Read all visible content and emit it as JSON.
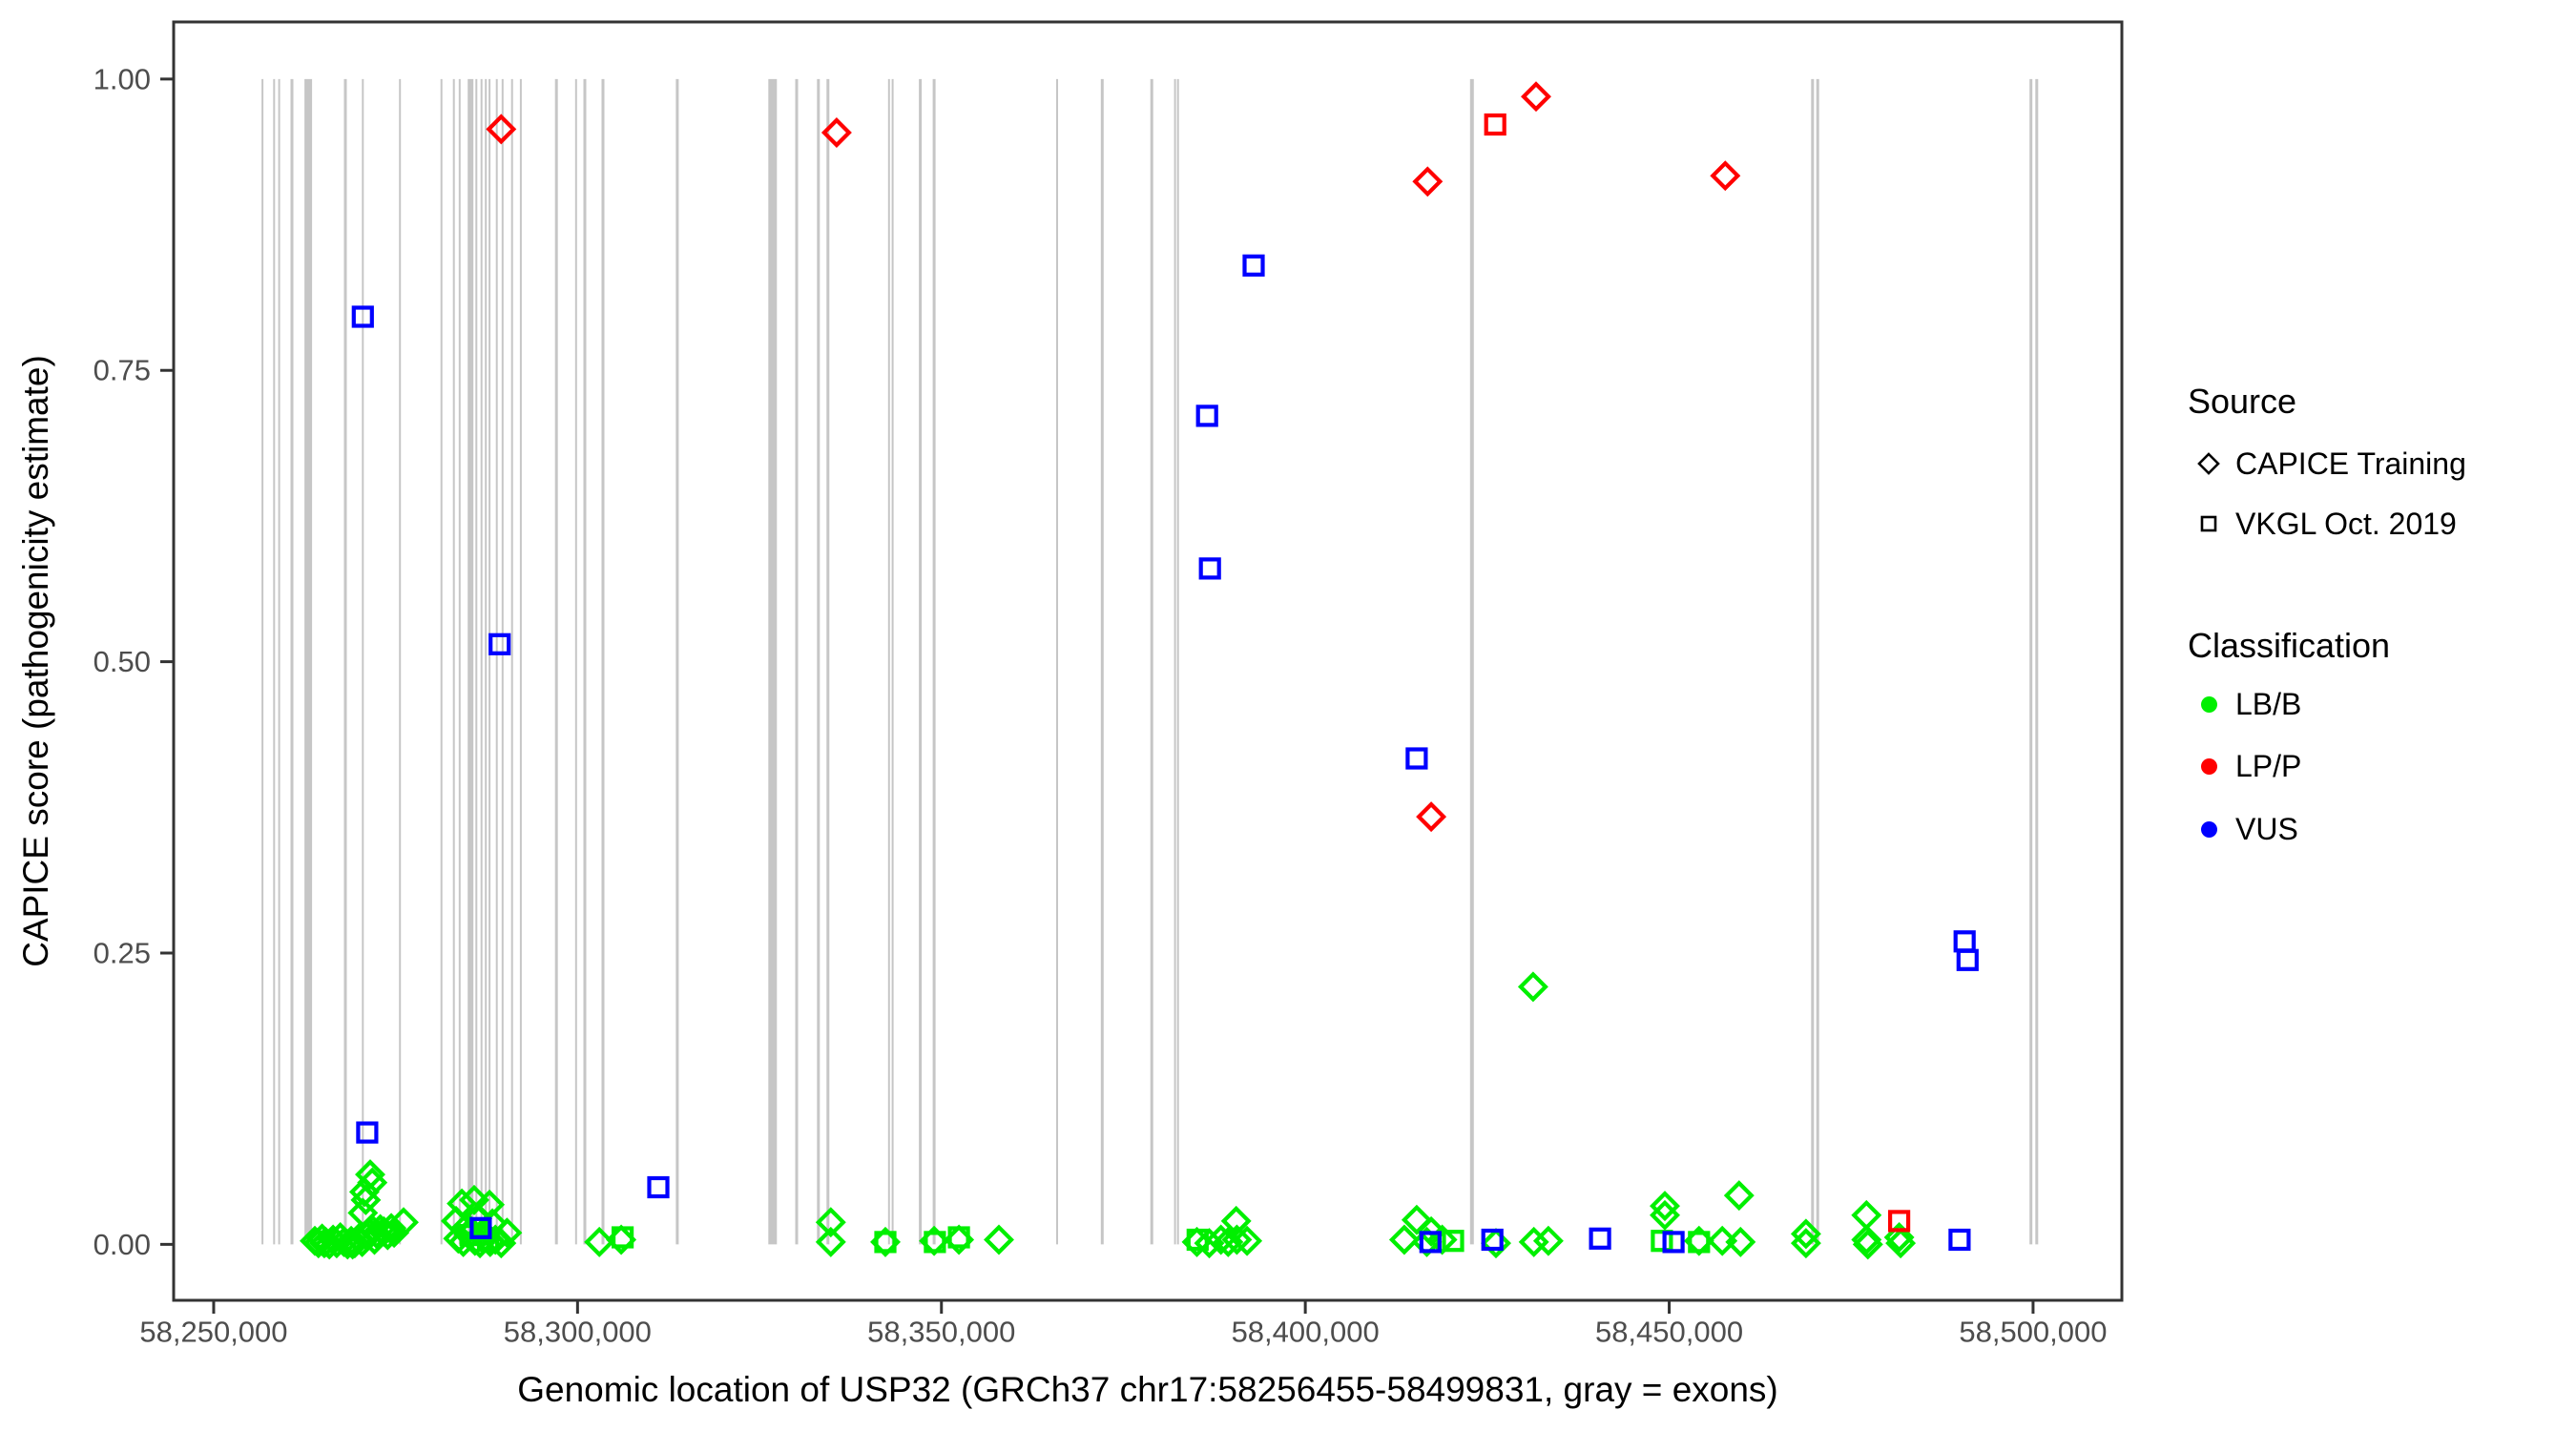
{
  "figure": {
    "xlabel": "Genomic location of USP32 (GRCh37 chr17:58256455-58499831, gray = exons)",
    "ylabel": "CAPICE score (pathogenicity estimate)"
  },
  "legend": {
    "source": {
      "title": "Source",
      "items": [
        {
          "label": "CAPICE Training",
          "marker": "diamond"
        },
        {
          "label": "VKGL Oct. 2019",
          "marker": "square"
        }
      ]
    },
    "classification": {
      "title": "Classification",
      "items": [
        {
          "label": "LB/B",
          "color_key": "LB/B"
        },
        {
          "label": "LP/P",
          "color_key": "LP/P"
        },
        {
          "label": "VUS",
          "color_key": "VUS"
        }
      ]
    }
  },
  "chart_data": {
    "type": "scatter",
    "title": "",
    "xlabel": "Genomic location of USP32 (GRCh37 chr17:58256455-58499831, gray = exons)",
    "ylabel": "CAPICE score (pathogenicity estimate)",
    "x_domain": [
      58244500,
      58512200
    ],
    "y_domain": [
      -0.048,
      1.049
    ],
    "grid": false,
    "legend_position": "right",
    "x_ticks": [
      {
        "value": 58250000,
        "label": "58,250,000"
      },
      {
        "value": 58300000,
        "label": "58,300,000"
      },
      {
        "value": 58350000,
        "label": "58,350,000"
      },
      {
        "value": 58400000,
        "label": "58,400,000"
      },
      {
        "value": 58450000,
        "label": "58,450,000"
      },
      {
        "value": 58500000,
        "label": "58,500,000"
      }
    ],
    "y_ticks": [
      {
        "value": 0.0,
        "label": "0.00"
      },
      {
        "value": 0.25,
        "label": "0.25"
      },
      {
        "value": 0.5,
        "label": "0.50"
      },
      {
        "value": 0.75,
        "label": "0.75"
      },
      {
        "value": 1.0,
        "label": "1.00"
      }
    ],
    "colors": {
      "LB/B": "#00EF00",
      "LP/P": "#FF0000",
      "VUS": "#0000FF",
      "exon": "#C6C6C6",
      "axis": "#333333",
      "tick_text": "#4D4D4D"
    },
    "exon_note": "gray vertical lines = exons, drawn spanning score 0 to 1",
    "exons": [
      [
        58256700,
        2
      ],
      [
        58258300,
        2
      ],
      [
        58259000,
        2
      ],
      [
        58260750,
        3
      ],
      [
        58263000,
        8
      ],
      [
        58268100,
        3
      ],
      [
        58270500,
        2
      ],
      [
        58275600,
        2
      ],
      [
        58281300,
        2
      ],
      [
        58283000,
        2
      ],
      [
        58283800,
        2
      ],
      [
        58285300,
        6
      ],
      [
        58286100,
        2
      ],
      [
        58286800,
        2
      ],
      [
        58287400,
        2
      ],
      [
        58287900,
        2
      ],
      [
        58288900,
        2
      ],
      [
        58289700,
        2
      ],
      [
        58291000,
        2
      ],
      [
        58292200,
        2
      ],
      [
        58297100,
        3
      ],
      [
        58299800,
        2
      ],
      [
        58301000,
        3
      ],
      [
        58303500,
        3
      ],
      [
        58313700,
        3
      ],
      [
        58326800,
        9
      ],
      [
        58330100,
        3
      ],
      [
        58333100,
        3
      ],
      [
        58334400,
        3
      ],
      [
        58342800,
        2
      ],
      [
        58343300,
        2
      ],
      [
        58347100,
        3
      ],
      [
        58349000,
        3
      ],
      [
        58365900,
        2
      ],
      [
        58372100,
        3
      ],
      [
        58378900,
        3
      ],
      [
        58382100,
        2
      ],
      [
        58382500,
        2
      ],
      [
        58422900,
        4
      ],
      [
        58469700,
        3
      ],
      [
        58470400,
        3
      ],
      [
        58499700,
        3
      ],
      [
        58500500,
        3
      ]
    ],
    "points_schema": [
      "genomic_position",
      "capice_score",
      "source",
      "classification"
    ],
    "points": [
      [
        58289500,
        0.957,
        "CAPICE Training",
        "LP/P"
      ],
      [
        58335600,
        0.954,
        "CAPICE Training",
        "LP/P"
      ],
      [
        58416800,
        0.912,
        "CAPICE Training",
        "LP/P"
      ],
      [
        58426100,
        0.961,
        "VKGL Oct. 2019",
        "LP/P"
      ],
      [
        58431700,
        0.985,
        "CAPICE Training",
        "LP/P"
      ],
      [
        58457700,
        0.917,
        "CAPICE Training",
        "LP/P"
      ],
      [
        58417300,
        0.367,
        "CAPICE Training",
        "LP/P"
      ],
      [
        58481600,
        0.02,
        "VKGL Oct. 2019",
        "LP/P"
      ],
      [
        58270500,
        0.796,
        "VKGL Oct. 2019",
        "VUS"
      ],
      [
        58271100,
        0.096,
        "VKGL Oct. 2019",
        "VUS"
      ],
      [
        58289300,
        0.515,
        "VKGL Oct. 2019",
        "VUS"
      ],
      [
        58386500,
        0.711,
        "VKGL Oct. 2019",
        "VUS"
      ],
      [
        58386900,
        0.58,
        "VKGL Oct. 2019",
        "VUS"
      ],
      [
        58392900,
        0.84,
        "VKGL Oct. 2019",
        "VUS"
      ],
      [
        58415300,
        0.417,
        "VKGL Oct. 2019",
        "VUS"
      ],
      [
        58490600,
        0.26,
        "VKGL Oct. 2019",
        "VUS"
      ],
      [
        58491000,
        0.244,
        "VKGL Oct. 2019",
        "VUS"
      ],
      [
        58286700,
        0.014,
        "VKGL Oct. 2019",
        "VUS"
      ],
      [
        58311100,
        0.049,
        "VKGL Oct. 2019",
        "VUS"
      ],
      [
        58417200,
        0.002,
        "VKGL Oct. 2019",
        "VUS"
      ],
      [
        58425700,
        0.004,
        "VKGL Oct. 2019",
        "VUS"
      ],
      [
        58440500,
        0.005,
        "VKGL Oct. 2019",
        "VUS"
      ],
      [
        58450600,
        0.002,
        "VKGL Oct. 2019",
        "VUS"
      ],
      [
        58489900,
        0.004,
        "VKGL Oct. 2019",
        "VUS"
      ],
      [
        58271500,
        0.06,
        "CAPICE Training",
        "LB/B"
      ],
      [
        58271800,
        0.053,
        "CAPICE Training",
        "LB/B"
      ],
      [
        58270700,
        0.045,
        "CAPICE Training",
        "LB/B"
      ],
      [
        58270900,
        0.038,
        "CAPICE Training",
        "LB/B"
      ],
      [
        58270500,
        0.027,
        "CAPICE Training",
        "LB/B"
      ],
      [
        58276100,
        0.019,
        "CAPICE Training",
        "LB/B"
      ],
      [
        58263900,
        0.003,
        "CAPICE Training",
        "LB/B"
      ],
      [
        58264400,
        0.001,
        "CAPICE Training",
        "LB/B"
      ],
      [
        58264900,
        0.005,
        "CAPICE Training",
        "LB/B"
      ],
      [
        58265400,
        0.002,
        "CAPICE Training",
        "LB/B"
      ],
      [
        58265900,
        0.0,
        "CAPICE Training",
        "LB/B"
      ],
      [
        58266400,
        0.004,
        "CAPICE Training",
        "LB/B"
      ],
      [
        58266900,
        0.001,
        "CAPICE Training",
        "LB/B"
      ],
      [
        58267400,
        0.006,
        "CAPICE Training",
        "LB/B"
      ],
      [
        58267900,
        0.002,
        "CAPICE Training",
        "LB/B"
      ],
      [
        58268400,
        0.0,
        "CAPICE Training",
        "LB/B"
      ],
      [
        58268900,
        0.003,
        "CAPICE Training",
        "LB/B"
      ],
      [
        58269400,
        0.001,
        "CAPICE Training",
        "LB/B"
      ],
      [
        58269900,
        0.005,
        "CAPICE Training",
        "LB/B"
      ],
      [
        58270400,
        0.002,
        "CAPICE Training",
        "LB/B"
      ],
      [
        58270900,
        0.008,
        "CAPICE Training",
        "LB/B"
      ],
      [
        58271400,
        0.01,
        "CAPICE Training",
        "LB/B"
      ],
      [
        58271900,
        0.012,
        "CAPICE Training",
        "LB/B"
      ],
      [
        58272400,
        0.009,
        "CAPICE Training",
        "LB/B"
      ],
      [
        58272900,
        0.013,
        "CAPICE Training",
        "LB/B"
      ],
      [
        58273400,
        0.011,
        "CAPICE Training",
        "LB/B"
      ],
      [
        58273900,
        0.008,
        "CAPICE Training",
        "LB/B"
      ],
      [
        58274400,
        0.014,
        "CAPICE Training",
        "LB/B"
      ],
      [
        58274800,
        0.01,
        "CAPICE Training",
        "LB/B"
      ],
      [
        58265200,
        0.001,
        "CAPICE Training",
        "LB/B"
      ],
      [
        58269100,
        0.0,
        "CAPICE Training",
        "LB/B"
      ],
      [
        58272100,
        0.004,
        "CAPICE Training",
        "LB/B"
      ],
      [
        58284100,
        0.035,
        "CAPICE Training",
        "LB/B"
      ],
      [
        58285800,
        0.038,
        "CAPICE Training",
        "LB/B"
      ],
      [
        58287900,
        0.034,
        "CAPICE Training",
        "LB/B"
      ],
      [
        58283300,
        0.02,
        "CAPICE Training",
        "LB/B"
      ],
      [
        58284800,
        0.015,
        "CAPICE Training",
        "LB/B"
      ],
      [
        58286200,
        0.022,
        "CAPICE Training",
        "LB/B"
      ],
      [
        58287000,
        0.01,
        "CAPICE Training",
        "LB/B"
      ],
      [
        58288300,
        0.018,
        "CAPICE Training",
        "LB/B"
      ],
      [
        58283600,
        0.005,
        "CAPICE Training",
        "LB/B"
      ],
      [
        58284300,
        0.002,
        "CAPICE Training",
        "LB/B"
      ],
      [
        58285100,
        0.008,
        "CAPICE Training",
        "LB/B"
      ],
      [
        58285900,
        0.003,
        "CAPICE Training",
        "LB/B"
      ],
      [
        58286600,
        0.001,
        "CAPICE Training",
        "LB/B"
      ],
      [
        58287300,
        0.006,
        "CAPICE Training",
        "LB/B"
      ],
      [
        58288000,
        0.002,
        "CAPICE Training",
        "LB/B"
      ],
      [
        58288700,
        0.004,
        "CAPICE Training",
        "LB/B"
      ],
      [
        58289500,
        0.001,
        "CAPICE Training",
        "LB/B"
      ],
      [
        58290300,
        0.01,
        "CAPICE Training",
        "LB/B"
      ],
      [
        58285300,
        0.008,
        "VKGL Oct. 2019",
        "LB/B"
      ],
      [
        58287700,
        0.003,
        "VKGL Oct. 2019",
        "LB/B"
      ],
      [
        58303000,
        0.002,
        "CAPICE Training",
        "LB/B"
      ],
      [
        58306200,
        0.006,
        "VKGL Oct. 2019",
        "LB/B"
      ],
      [
        58306000,
        0.004,
        "CAPICE Training",
        "LB/B"
      ],
      [
        58334800,
        0.019,
        "CAPICE Training",
        "LB/B"
      ],
      [
        58334800,
        0.002,
        "CAPICE Training",
        "LB/B"
      ],
      [
        58342300,
        0.002,
        "CAPICE Training",
        "LB/B"
      ],
      [
        58342300,
        0.002,
        "VKGL Oct. 2019",
        "LB/B"
      ],
      [
        58349100,
        0.002,
        "VKGL Oct. 2019",
        "LB/B"
      ],
      [
        58349000,
        0.003,
        "CAPICE Training",
        "LB/B"
      ],
      [
        58352400,
        0.006,
        "VKGL Oct. 2019",
        "LB/B"
      ],
      [
        58352400,
        0.004,
        "CAPICE Training",
        "LB/B"
      ],
      [
        58357900,
        0.004,
        "CAPICE Training",
        "LB/B"
      ],
      [
        58385100,
        0.002,
        "CAPICE Training",
        "LB/B"
      ],
      [
        58386800,
        0.001,
        "CAPICE Training",
        "LB/B"
      ],
      [
        58388400,
        0.004,
        "CAPICE Training",
        "LB/B"
      ],
      [
        58389400,
        0.002,
        "CAPICE Training",
        "LB/B"
      ],
      [
        58390600,
        0.004,
        "CAPICE Training",
        "LB/B"
      ],
      [
        58390500,
        0.02,
        "CAPICE Training",
        "LB/B"
      ],
      [
        58392000,
        0.003,
        "CAPICE Training",
        "LB/B"
      ],
      [
        58385200,
        0.004,
        "VKGL Oct. 2019",
        "LB/B"
      ],
      [
        58413600,
        0.004,
        "CAPICE Training",
        "LB/B"
      ],
      [
        58415300,
        0.021,
        "CAPICE Training",
        "LB/B"
      ],
      [
        58416700,
        0.002,
        "CAPICE Training",
        "LB/B"
      ],
      [
        58417300,
        0.011,
        "CAPICE Training",
        "LB/B"
      ],
      [
        58418800,
        0.004,
        "CAPICE Training",
        "LB/B"
      ],
      [
        58420300,
        0.003,
        "VKGL Oct. 2019",
        "LB/B"
      ],
      [
        58426200,
        0.001,
        "CAPICE Training",
        "LB/B"
      ],
      [
        58431400,
        0.002,
        "CAPICE Training",
        "LB/B"
      ],
      [
        58433400,
        0.003,
        "CAPICE Training",
        "LB/B"
      ],
      [
        58431300,
        0.221,
        "CAPICE Training",
        "LB/B"
      ],
      [
        58449000,
        0.003,
        "VKGL Oct. 2019",
        "LB/B"
      ],
      [
        58449400,
        0.033,
        "CAPICE Training",
        "LB/B"
      ],
      [
        58449400,
        0.025,
        "CAPICE Training",
        "LB/B"
      ],
      [
        58454100,
        0.002,
        "VKGL Oct. 2019",
        "LB/B"
      ],
      [
        58454100,
        0.003,
        "CAPICE Training",
        "LB/B"
      ],
      [
        58457300,
        0.003,
        "CAPICE Training",
        "LB/B"
      ],
      [
        58459800,
        0.002,
        "CAPICE Training",
        "LB/B"
      ],
      [
        58459600,
        0.042,
        "CAPICE Training",
        "LB/B"
      ],
      [
        58468800,
        0.009,
        "CAPICE Training",
        "LB/B"
      ],
      [
        58468800,
        0.001,
        "CAPICE Training",
        "LB/B"
      ],
      [
        58477100,
        0.025,
        "CAPICE Training",
        "LB/B"
      ],
      [
        58477100,
        0.004,
        "CAPICE Training",
        "LB/B"
      ],
      [
        58477300,
        0.0,
        "CAPICE Training",
        "LB/B"
      ],
      [
        58481600,
        0.006,
        "CAPICE Training",
        "LB/B"
      ],
      [
        58481800,
        0.001,
        "CAPICE Training",
        "LB/B"
      ]
    ]
  }
}
